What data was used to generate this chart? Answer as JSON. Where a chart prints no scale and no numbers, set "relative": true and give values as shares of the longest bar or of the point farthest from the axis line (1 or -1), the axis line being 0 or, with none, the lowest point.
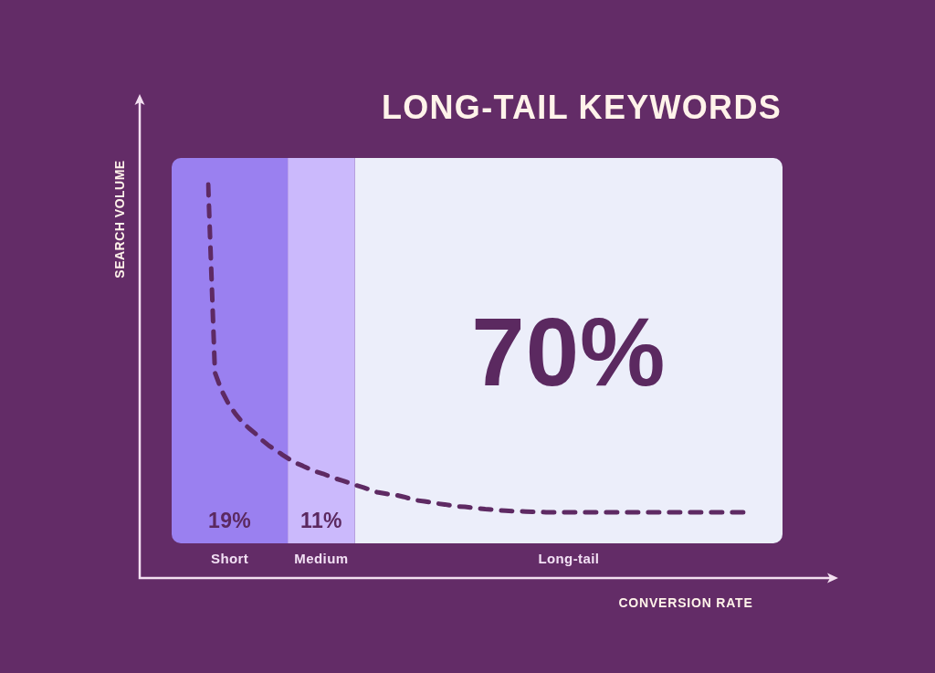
{
  "chart_data": [
    {
      "type": "bar",
      "orientation": "horizontal",
      "stacked": true,
      "categories": [
        null
      ],
      "tick_labels": false,
      "series": [
        {
          "name": "Short",
          "color": "#9a80f0",
          "values": [
            19
          ],
          "value_labels": [
            "19%"
          ]
        },
        {
          "name": "Medium",
          "color": "#cbb9fc",
          "values": [
            11
          ],
          "value_labels": [
            "11%"
          ]
        },
        {
          "name": "Long-tail",
          "color": "#eceefa",
          "values": [
            70
          ],
          "value_labels": [
            "70%"
          ]
        }
      ]
    },
    {
      "type": "line",
      "title": "LONG-TAIL KEYWORDS",
      "xlabel": "CONVERSION RATE",
      "ylabel": "SEARCH VOLUME",
      "relative": true,
      "tick_labels": false,
      "line_style": "dashed",
      "marker": "none",
      "categories": [
        null,
        null,
        null,
        null,
        null,
        null,
        null,
        null,
        null,
        null,
        null,
        null,
        null,
        null,
        null,
        null,
        null,
        null,
        null,
        null,
        null,
        null,
        null,
        null,
        null,
        null,
        null,
        null,
        null,
        null,
        null,
        null,
        null,
        null,
        null,
        null,
        null,
        null,
        null,
        null,
        null,
        null,
        null,
        null,
        null,
        null,
        null,
        null,
        null,
        null,
        null,
        null,
        null,
        null,
        null,
        null,
        null,
        null,
        null,
        null,
        null,
        null,
        null,
        null,
        null,
        null,
        null,
        null,
        null,
        null,
        null,
        null,
        null,
        null,
        null,
        null,
        null,
        null,
        null,
        null,
        null
      ],
      "series": [
        {
          "color": "#5e2a63",
          "values": [
            1,
            0.522,
            0.476,
            0.443,
            0.418,
            0.397,
            0.381,
            0.367,
            0.35,
            0.336,
            0.325,
            0.313,
            0.302,
            0.292,
            0.285,
            0.277,
            0.27,
            0.265,
            0.258,
            0.252,
            0.247,
            0.241,
            0.235,
            0.23,
            0.224,
            0.218,
            0.215,
            0.212,
            0.21,
            0.206,
            0.201,
            0.197,
            0.195,
            0.192,
            0.189,
            0.187,
            0.184,
            0.182,
            0.181,
            0.179,
            0.177,
            0.175,
            0.174,
            0.172,
            0.171,
            0.17,
            0.17,
            0.169,
            0.168,
            0.168,
            0.167,
            0.167,
            0.167,
            0.167,
            0.167,
            0.167,
            0.167,
            0.167,
            0.167,
            0.167,
            0.167,
            0.167,
            0.167,
            0.167,
            0.167,
            0.167,
            0.167,
            0.167,
            0.167,
            0.167,
            0.167,
            0.167,
            0.167,
            0.167,
            0.167,
            0.167,
            0.167,
            0.167,
            0.167,
            0.167,
            0.167
          ]
        }
      ]
    }
  ]
}
